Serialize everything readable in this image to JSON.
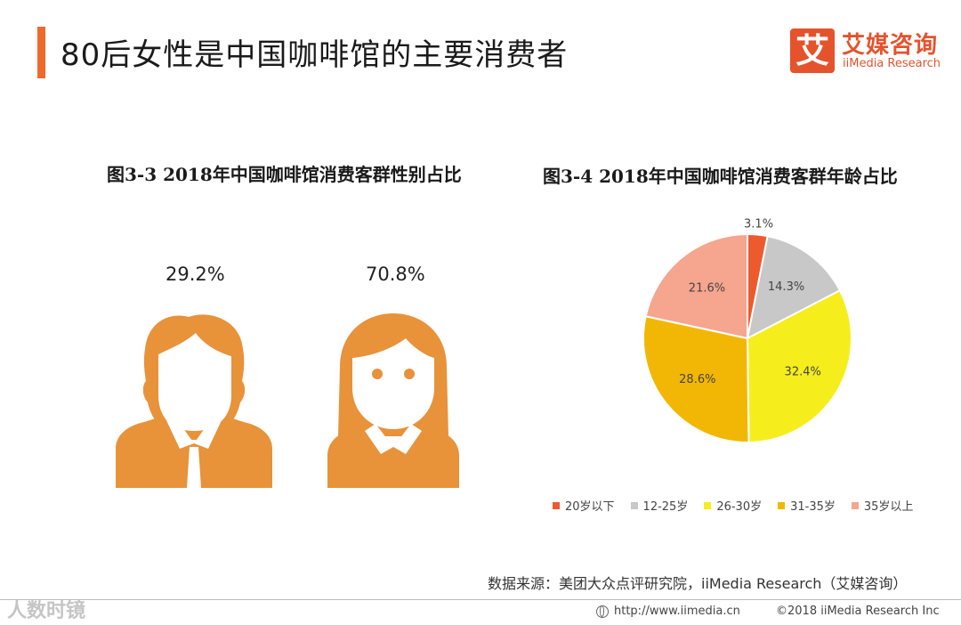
{
  "header": {
    "title": "80后女性是中国咖啡馆的主要消费者",
    "logo_mark": "艾",
    "logo_cn": "艾媒咨询",
    "logo_en": "iiMedia Research",
    "accent_color": "#ee6a2a"
  },
  "chart_data": [
    {
      "type": "pictogram",
      "title": "图3-3 2018年中国咖啡馆消费客群性别占比",
      "categories": [
        "男",
        "女"
      ],
      "values": [
        29.2,
        70.8
      ],
      "labels": [
        "29.2%",
        "70.8%"
      ],
      "icons": [
        "male-person-icon",
        "female-person-icon"
      ],
      "color": "#e8923a"
    },
    {
      "type": "pie",
      "title": "图3-4 2018年中国咖啡馆消费客群年龄占比",
      "categories": [
        "20岁以下",
        "12-25岁",
        "26-30岁",
        "31-35岁",
        "35岁以上"
      ],
      "values": [
        3.1,
        14.3,
        32.4,
        28.6,
        21.6
      ],
      "labels": [
        "3.1%",
        "14.3%",
        "32.4%",
        "28.6%",
        "21.6%"
      ],
      "colors": [
        "#ed5a2e",
        "#c8c8c8",
        "#f5ee1c",
        "#f2b705",
        "#f6a58e"
      ],
      "legend": "bottom"
    }
  ],
  "footer": {
    "source": "数据来源：美团大众点评研究院，iiMedia Research（艾媒咨询）",
    "url": "http://www.iimedia.cn",
    "copyright": "©2018  iiMedia Research  Inc",
    "watermark": "人数时镜"
  }
}
